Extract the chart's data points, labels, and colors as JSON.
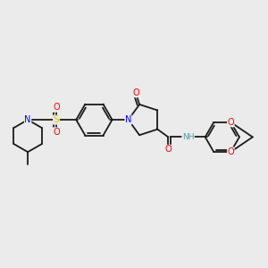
{
  "background_color": "#ebebeb",
  "atom_colors": {
    "C": "#1a1a1a",
    "N": "#0000ff",
    "O": "#ff0000",
    "S": "#cccc00",
    "NH": "#5599aa"
  },
  "bond_color": "#1a1a1a",
  "figsize": [
    3.0,
    3.0
  ],
  "dpi": 100,
  "lw": 1.3,
  "fs": 7.0
}
